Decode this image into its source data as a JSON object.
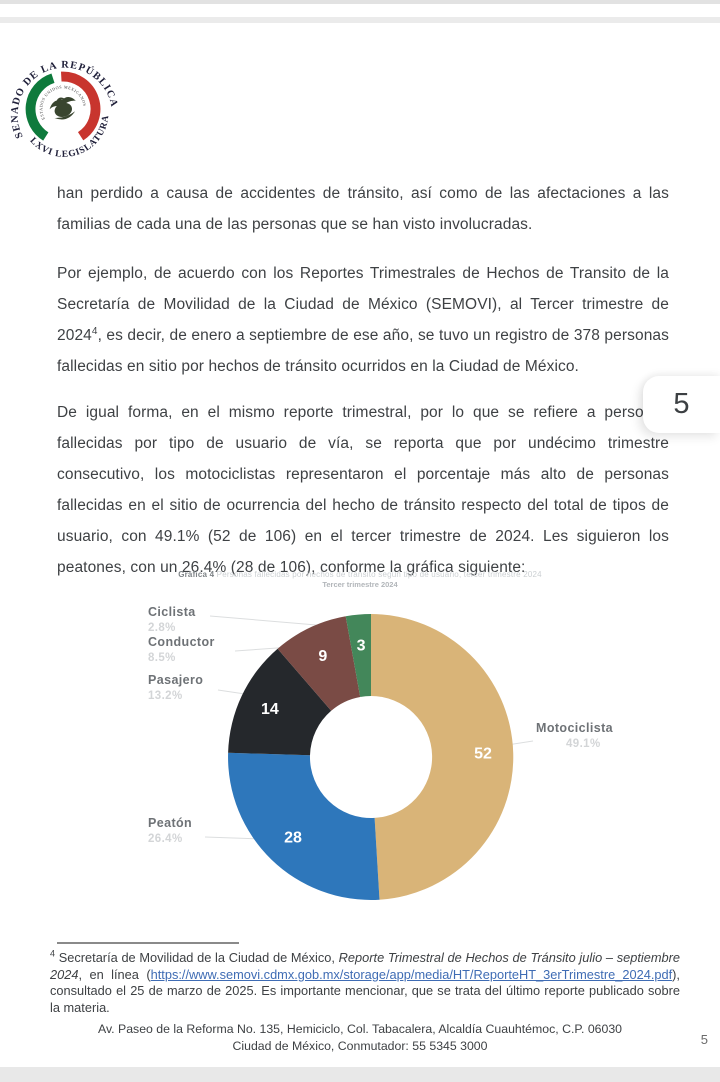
{
  "page": {
    "number_overlay": "5",
    "page_number_footer": "5"
  },
  "logo": {
    "top_text": "SENADO DE LA REPÚBLICA",
    "bottom_text": "LXVI LEGISLATURA",
    "inner_text": "ESTADOS UNIDOS MEXICANOS"
  },
  "paragraphs": {
    "p1": "han perdido a causa de accidentes de tránsito, así como de las afectaciones a las familias de cada una de las personas que se han visto involucradas.",
    "p2_before_sup": "Por ejemplo, de acuerdo con los Reportes Trimestrales de Hechos de Transito de la Secretaría de Movilidad de la Ciudad de México (SEMOVI), al Tercer trimestre de 2024",
    "p2_sup": "4",
    "p2_after_sup": ", es decir, de enero a septiembre de ese año, se tuvo un registro de 378 personas fallecidas en sitio por hechos de tránsito ocurridos en la Ciudad de México.",
    "p3": "De igual forma, en el mismo reporte trimestral, por lo que se refiere a personas fallecidas por tipo de usuario de vía, se reporta que por undécimo trimestre consecutivo, los motociclistas representaron el porcentaje más alto de personas fallecidas en el sitio de ocurrencia del hecho de tránsito respecto del total de tipos de usuario, con 49.1% (52 de 106) en el tercer trimestre de 2024. Les siguieron los peatones, con un 26.4% (28 de 106), conforme la gráfica siguiente:"
  },
  "chart_data": {
    "type": "pie",
    "donut": true,
    "title_prefix": "Gráfica 4",
    "title_rest": "Personas fallecidas por hechos de tránsito según tipo de usuario, tercer trimestre 2024",
    "subtitle": "Tercer trimestre 2024",
    "total": 106,
    "start_angle": "12-o-clock",
    "direction": "clockwise",
    "legend_position": "callout-labels",
    "segments": [
      {
        "label": "Motociclista",
        "value": 52,
        "pct": "49.1%",
        "color": "#d9b478"
      },
      {
        "label": "Peatón",
        "value": 28,
        "pct": "26.4%",
        "color": "#2e77bb"
      },
      {
        "label": "Pasajero",
        "value": 14,
        "pct": "13.2%",
        "color": "#25282c"
      },
      {
        "label": "Conductor",
        "value": 9,
        "pct": "8.5%",
        "color": "#7a4b45"
      },
      {
        "label": "Ciclista",
        "value": 3,
        "pct": "2.8%",
        "color": "#43875a"
      }
    ]
  },
  "footnote": {
    "marker": "4",
    "before_italic": " Secretaría de Movilidad de la Ciudad de México, ",
    "italic": "Reporte Trimestral de Hechos de Tránsito julio  – septiembre 2024",
    "middle": ", en línea (",
    "link": "https://www.semovi.cdmx.gob.mx/storage/app/media/HT/ReporteHT_3erTrimestre_2024.pdf",
    "after_link": "), consultado el 25 de marzo de 2025. Es importante mencionar, que se trata del último reporte publicado sobre la materia."
  },
  "footer": {
    "line1": "Av. Paseo de la Reforma No. 135, Hemiciclo, Col. Tabacalera, Alcaldía Cuauhtémoc, C.P. 06030",
    "line2": "Ciudad de México,  Conmutador: 55 5345 3000"
  }
}
